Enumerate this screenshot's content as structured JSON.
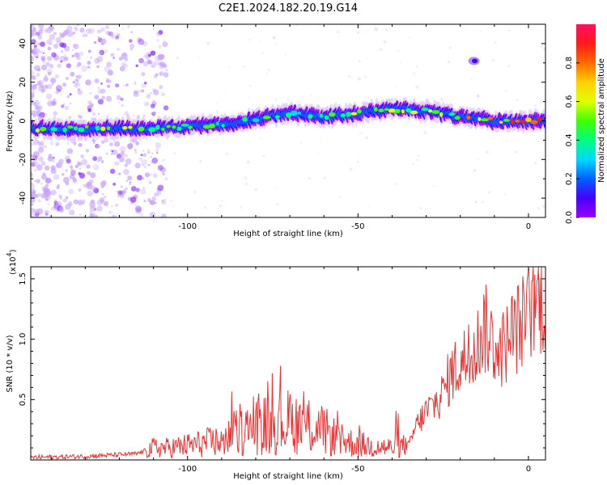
{
  "title": "C2E1.2024.182.20.19.G14",
  "chart_data": [
    {
      "type": "heatmap",
      "title": "C2E1.2024.182.20.19.G14",
      "xlabel": "Height of straight line (km)",
      "ylabel": "Frequency (Hz)",
      "xlim": [
        -146,
        5
      ],
      "ylim": [
        -50,
        50
      ],
      "xticks": [
        -100,
        -50,
        0
      ],
      "yticks": [
        -40,
        -20,
        0,
        20,
        40
      ],
      "colorbar": {
        "label": "Normalized spectral amplitude",
        "range": [
          0,
          1
        ],
        "ticks": [
          0.0,
          0.2,
          0.4,
          0.6,
          0.8
        ],
        "colormap": [
          "#9b00ff",
          "#4600ff",
          "#0060ff",
          "#00d8ff",
          "#00ff80",
          "#40ff00",
          "#e0ff00",
          "#ffd000",
          "#ff6a00",
          "#ff1a1a",
          "#ff1060"
        ]
      },
      "ridge": {
        "x": [
          -146,
          -130,
          -115,
          -100,
          -90,
          -80,
          -70,
          -60,
          -50,
          -40,
          -30,
          -20,
          -10,
          0,
          5
        ],
        "frequency": [
          -4,
          -4,
          -4,
          -3,
          -2,
          1,
          4,
          2,
          4,
          6,
          5,
          2,
          0,
          0,
          0
        ],
        "amplitude": [
          0.55,
          0.6,
          0.6,
          0.55,
          0.5,
          0.5,
          0.45,
          0.5,
          0.55,
          0.6,
          0.65,
          0.7,
          0.85,
          0.9,
          0.9
        ]
      },
      "blob": {
        "x": -16,
        "frequency": 31
      }
    },
    {
      "type": "line",
      "xlabel": "Height of straight line (km)",
      "ylabel": "SNR (10 * v/v)",
      "scale_label": "(x10",
      "scale_exponent": "4",
      "xlim": [
        -146,
        5
      ],
      "ylim": [
        0,
        1.6
      ],
      "xticks": [
        -100,
        -50,
        0
      ],
      "yticks": [
        0.5,
        1.0,
        1.5
      ],
      "ytick_labels": [
        "0.5",
        "1.0",
        "1.5"
      ],
      "series": [
        {
          "color": "#ee3333",
          "x": [
            -146,
            -130,
            -115,
            -110,
            -105,
            -100,
            -90,
            -85,
            -80,
            -75,
            -70,
            -65,
            -60,
            -55,
            -50,
            -45,
            -40,
            -35,
            -33,
            -30,
            -28,
            -25,
            -23,
            -20,
            -18,
            -15,
            -13,
            -10,
            -8,
            -5,
            -3,
            0,
            2,
            5
          ],
          "values": [
            0.02,
            0.03,
            0.05,
            0.1,
            0.1,
            0.12,
            0.16,
            0.22,
            0.28,
            0.3,
            0.32,
            0.28,
            0.24,
            0.16,
            0.13,
            0.11,
            0.1,
            0.12,
            0.28,
            0.4,
            0.45,
            0.55,
            0.7,
            0.8,
            0.85,
            0.95,
            1.1,
            0.95,
            0.9,
            1.05,
            1.1,
            1.2,
            1.3,
            1.35
          ]
        }
      ]
    }
  ]
}
